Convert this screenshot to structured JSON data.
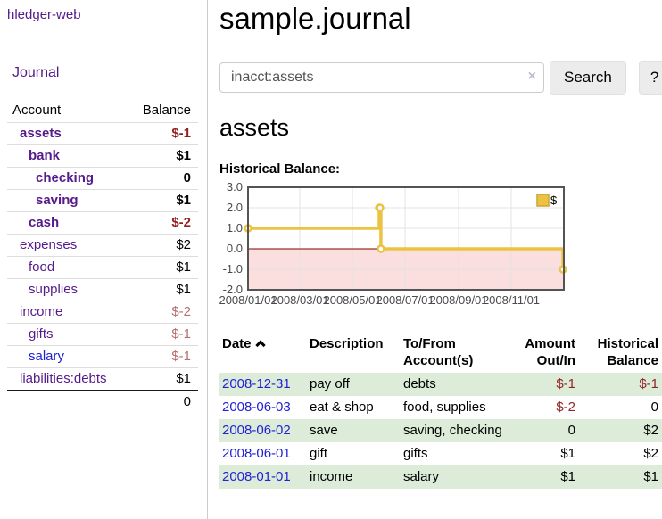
{
  "sidebar": {
    "brand": "hledger-web",
    "nav": {
      "journal": "Journal"
    },
    "account_table": {
      "headers": [
        "Account",
        "Balance"
      ],
      "rows": [
        {
          "account": "assets",
          "balance": "$-1",
          "depth": 1,
          "bold": true,
          "link": "purple",
          "style": "neg-strong"
        },
        {
          "account": "bank",
          "balance": "$1",
          "depth": 2,
          "bold": true,
          "link": "purple",
          "style": "pos-b"
        },
        {
          "account": "checking",
          "balance": "0",
          "depth": 3,
          "bold": true,
          "link": "purple",
          "style": "pos-b"
        },
        {
          "account": "saving",
          "balance": "$1",
          "depth": 3,
          "bold": true,
          "link": "purple",
          "style": "pos-b"
        },
        {
          "account": "cash",
          "balance": "$-2",
          "depth": 2,
          "bold": true,
          "link": "purple",
          "style": "neg-strong"
        },
        {
          "account": "expenses",
          "balance": "$2",
          "depth": 1,
          "bold": false,
          "link": "purple",
          "style": "pos"
        },
        {
          "account": "food",
          "balance": "$1",
          "depth": 2,
          "bold": false,
          "link": "purple",
          "style": "pos"
        },
        {
          "account": "supplies",
          "balance": "$1",
          "depth": 2,
          "bold": false,
          "link": "purple",
          "style": "pos"
        },
        {
          "account": "income",
          "balance": "$-2",
          "depth": 1,
          "bold": false,
          "link": "purple",
          "style": "neg-muted"
        },
        {
          "account": "gifts",
          "balance": "$-1",
          "depth": 2,
          "bold": false,
          "link": "purple",
          "style": "neg-muted"
        },
        {
          "account": "salary",
          "balance": "$-1",
          "depth": 2,
          "bold": false,
          "link": "blue",
          "style": "neg-muted"
        },
        {
          "account": "liabilities:debts",
          "balance": "$1",
          "depth": 1,
          "bold": false,
          "link": "purple",
          "style": "pos"
        }
      ],
      "total": "0"
    }
  },
  "main": {
    "title": "sample.journal",
    "search": {
      "value": "inacct:assets",
      "clear_icon": "×",
      "button": "Search",
      "help": "?"
    },
    "account_heading": "assets",
    "chart_label": "Historical Balance:"
  },
  "chart_data": {
    "type": "line",
    "title": "Historical Balance:",
    "step": true,
    "x_range": [
      "2008-01-01",
      "2009-01-01"
    ],
    "x_ticks": [
      {
        "date": "2008-01-01",
        "label": "2008/01/01"
      },
      {
        "date": "2008-03-01",
        "label": "2008/03/01"
      },
      {
        "date": "2008-05-01",
        "label": "2008/05/01"
      },
      {
        "date": "2008-07-01",
        "label": "2008/07/01"
      },
      {
        "date": "2008-09-01",
        "label": "2008/09/01"
      },
      {
        "date": "2008-11-01",
        "label": "2008/11/01"
      }
    ],
    "y_ticks": [
      "3.0",
      "2.0",
      "1.0",
      "0.0",
      "-1.0",
      "-2.0"
    ],
    "ylim": [
      -2,
      3
    ],
    "legend": [
      {
        "name": "$",
        "color": "#edc240"
      }
    ],
    "legend_position": "top-right",
    "grid": true,
    "series": [
      {
        "name": "$",
        "color": "#edc240",
        "points": [
          {
            "date": "2008-01-01",
            "value": 1
          },
          {
            "date": "2008-06-01",
            "value": 2
          },
          {
            "date": "2008-06-02",
            "value": 2
          },
          {
            "date": "2008-06-03",
            "value": 0
          },
          {
            "date": "2008-12-31",
            "value": -1
          }
        ]
      }
    ],
    "negative_region_color": "#fbdede",
    "zero_line_color": "#800000",
    "border_color": "#545454",
    "gridline_color": "#e3e3e3",
    "tick_label_color": "#4a4a4a"
  },
  "register_table": {
    "headers": [
      "Date",
      "Description",
      "To/From Account(s)",
      "Amount Out/In",
      "Historical Balance"
    ],
    "sort": {
      "column": "Date",
      "direction": "ascending"
    },
    "rows": [
      {
        "date": "2008-12-31",
        "description": "pay off",
        "accounts": "debts",
        "amount": "$-1",
        "balance": "$-1",
        "amount_negative": true,
        "balance_negative": true
      },
      {
        "date": "2008-06-03",
        "description": "eat & shop",
        "accounts": "food, supplies",
        "amount": "$-2",
        "balance": "0",
        "amount_negative": true,
        "balance_negative": false
      },
      {
        "date": "2008-06-02",
        "description": "save",
        "accounts": "saving, checking",
        "amount": "0",
        "balance": "$2",
        "amount_negative": false,
        "balance_negative": false
      },
      {
        "date": "2008-06-01",
        "description": "gift",
        "accounts": "gifts",
        "amount": "$1",
        "balance": "$2",
        "amount_negative": false,
        "balance_negative": false
      },
      {
        "date": "2008-01-01",
        "description": "income",
        "accounts": "salary",
        "amount": "$1",
        "balance": "$1",
        "amount_negative": false,
        "balance_negative": false
      }
    ]
  },
  "colors": {
    "link_purple": "#551a8b",
    "link_blue": "#2222d5",
    "negative_strong": "#941f1f",
    "negative_muted": "#b56d6d",
    "table_negative": "#8f2727",
    "row_stripe_green": "#dcecd9",
    "chart_series_yellow": "#edc240",
    "chart_negative_region": "#fbdede",
    "chart_zero_line": "#800000"
  }
}
